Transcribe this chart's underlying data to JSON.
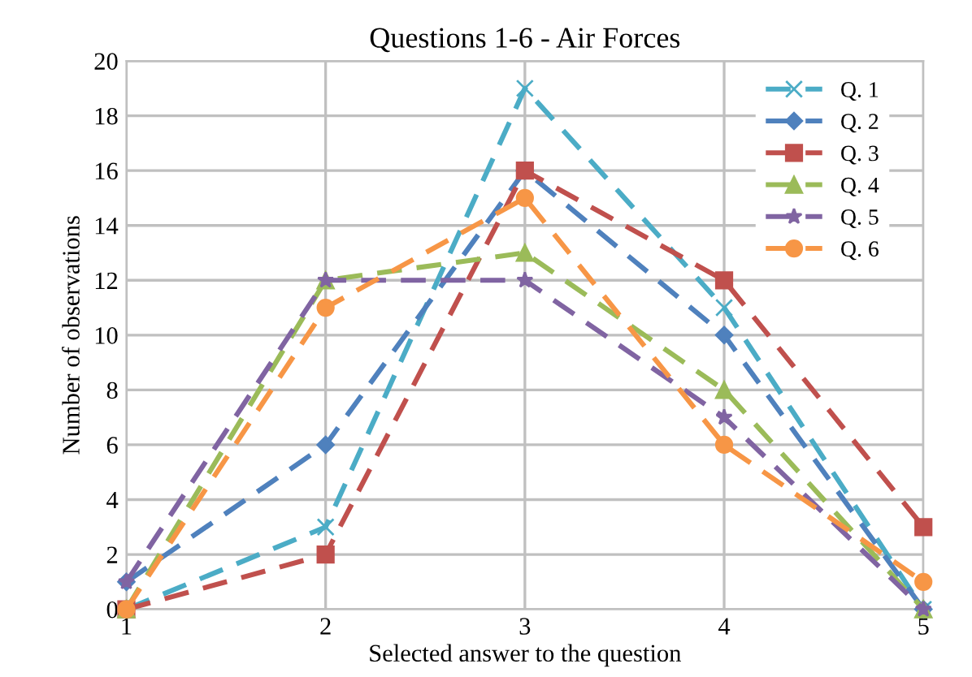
{
  "chart_data": {
    "type": "line",
    "title": "Questions 1-6 - Air Forces",
    "xlabel": "Selected answer to the question",
    "ylabel": "Number of observations",
    "x": [
      1,
      2,
      3,
      4,
      5
    ],
    "xlim": [
      1,
      5
    ],
    "xticks": [
      1,
      2,
      3,
      4,
      5
    ],
    "ylim": [
      0,
      20
    ],
    "yticks": [
      0,
      2,
      4,
      6,
      8,
      10,
      12,
      14,
      16,
      18,
      20
    ],
    "grid": true,
    "legend": "top right",
    "line_style": "dashed",
    "series": [
      {
        "name": "Q. 1",
        "color": "#4bacc6",
        "marker": "cross",
        "values": [
          0,
          3,
          19,
          11,
          0
        ]
      },
      {
        "name": "Q. 2",
        "color": "#4f81bd",
        "marker": "diamond",
        "values": [
          1,
          6,
          16,
          10,
          0
        ]
      },
      {
        "name": "Q. 3",
        "color": "#c0504d",
        "marker": "square",
        "values": [
          0,
          2,
          16,
          12,
          3
        ]
      },
      {
        "name": "Q. 4",
        "color": "#9bbb59",
        "marker": "triangle",
        "values": [
          0,
          12,
          13,
          8,
          0
        ]
      },
      {
        "name": "Q. 5",
        "color": "#8064a2",
        "marker": "star",
        "values": [
          1,
          12,
          12,
          7,
          0
        ]
      },
      {
        "name": "Q. 6",
        "color": "#f79646",
        "marker": "circle",
        "values": [
          0,
          11,
          15,
          6,
          1
        ]
      }
    ]
  }
}
